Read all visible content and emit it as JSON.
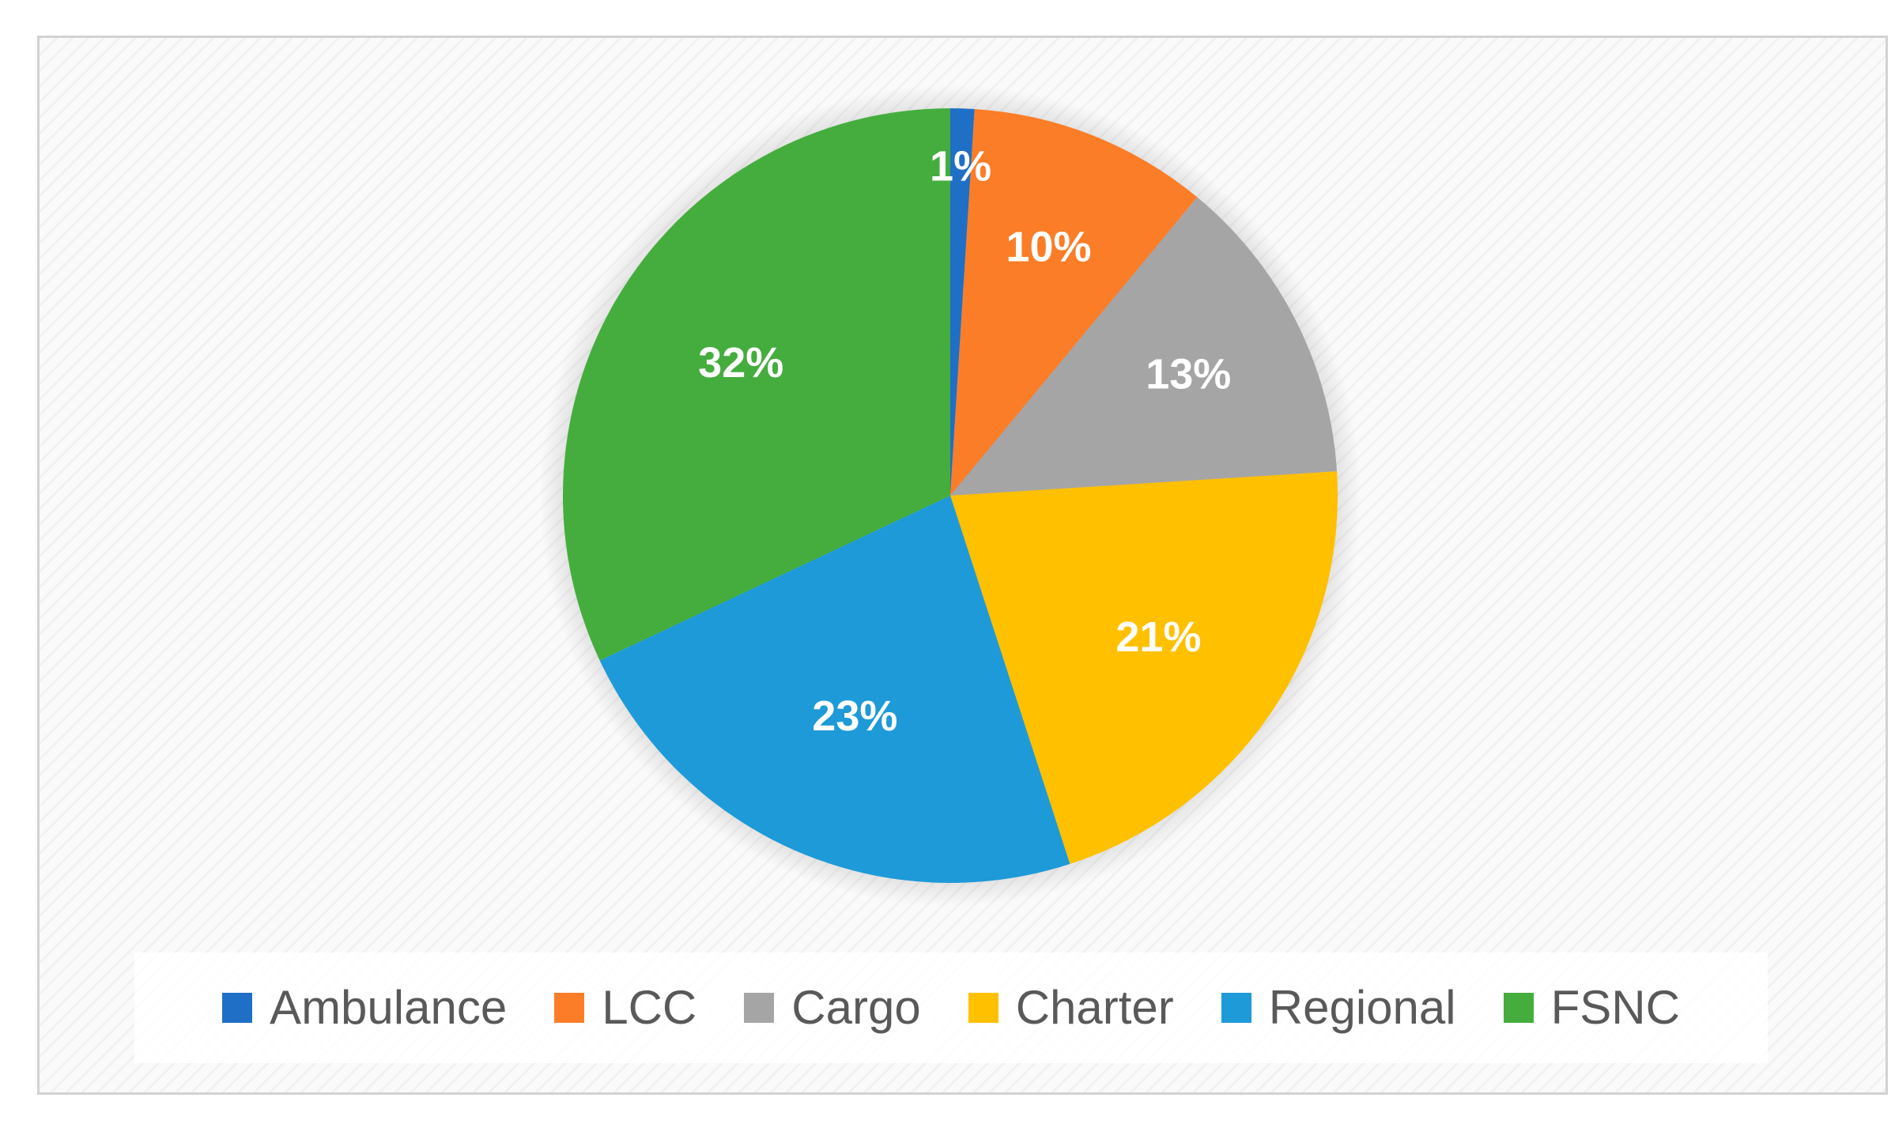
{
  "chart_data": {
    "type": "pie",
    "categories": [
      "Ambulance",
      "LCC",
      "Cargo",
      "Charter",
      "Regional",
      "FSNC"
    ],
    "values": [
      1,
      10,
      13,
      21,
      23,
      32
    ],
    "data_labels": [
      "1%",
      "10%",
      "13%",
      "21%",
      "23%",
      "32%"
    ],
    "colors": [
      "#1f6fc6",
      "#fb7d28",
      "#a5a5a5",
      "#ffc000",
      "#1e9ad8",
      "#45ad3e"
    ],
    "start_angle_deg": 0,
    "direction": "clockwise",
    "legend_position": "bottom",
    "title": ""
  }
}
